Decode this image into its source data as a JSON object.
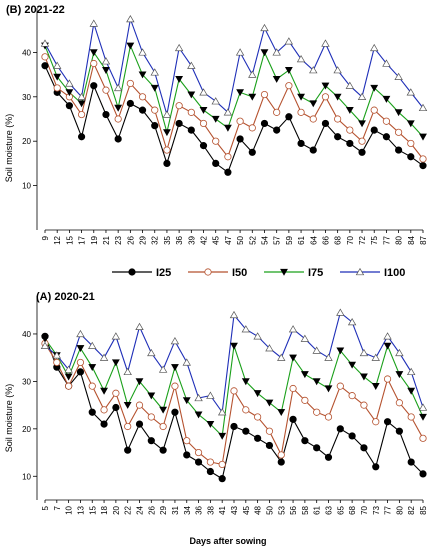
{
  "colors": {
    "I25": "#000000",
    "I50": "#b5522f",
    "I75": "#1aa01a",
    "I100": "#1f2fb8"
  },
  "legend": [
    {
      "name": "I25",
      "marker": "filled-circle"
    },
    {
      "name": "I50",
      "marker": "open-circle"
    },
    {
      "name": "I75",
      "marker": "filled-triangle-down"
    },
    {
      "name": "I100",
      "marker": "open-triangle-up"
    }
  ],
  "chart_data": [
    {
      "type": "line",
      "title": "(B) 2021-22",
      "ylabel": "Soil moisture (%)",
      "xlabel": "",
      "ylim": [
        0,
        50
      ],
      "yticks": [
        10,
        20,
        30,
        40
      ],
      "x": [
        9,
        12,
        15,
        17,
        19,
        21,
        23,
        26,
        29,
        32,
        35,
        36,
        39,
        42,
        45,
        47,
        50,
        52,
        54,
        57,
        59,
        61,
        64,
        66,
        68,
        70,
        72,
        75,
        77,
        80,
        84,
        87
      ],
      "series": [
        {
          "name": "I25",
          "values": [
            37,
            31,
            28,
            21,
            32.5,
            26,
            20.5,
            28.5,
            27,
            23.5,
            15,
            24,
            22.5,
            19,
            15,
            13,
            20.5,
            17.5,
            24,
            22.5,
            25.5,
            19.5,
            18,
            24,
            21,
            19.5,
            17.5,
            22.5,
            21,
            18,
            16.5,
            14.5
          ]
        },
        {
          "name": "I50",
          "values": [
            39,
            32,
            30,
            26,
            37.5,
            31.5,
            25,
            33,
            30,
            27,
            18,
            28,
            26.5,
            24,
            20,
            16.5,
            24.5,
            23,
            30.5,
            26.5,
            32.5,
            26.5,
            25,
            30,
            25,
            22.5,
            20,
            27,
            24.5,
            22,
            19.5,
            16
          ]
        },
        {
          "name": "I75",
          "values": [
            41.5,
            34.5,
            31,
            28.5,
            40,
            36,
            27.5,
            41.5,
            35,
            32,
            22,
            34,
            30.5,
            27,
            25,
            23,
            31,
            30,
            40,
            34,
            36,
            30,
            28.5,
            32.5,
            30,
            27,
            24,
            32,
            29.5,
            26.5,
            24,
            21
          ]
        },
        {
          "name": "I100",
          "values": [
            42,
            37,
            33,
            30,
            46.5,
            38,
            32,
            47.5,
            40,
            35.5,
            26,
            41,
            37,
            31,
            29,
            26.5,
            40,
            35,
            45.5,
            40,
            42.5,
            38.5,
            36,
            42,
            36,
            32.5,
            30,
            41,
            37.5,
            34.5,
            31,
            27.5
          ]
        }
      ]
    },
    {
      "type": "line",
      "title": "(A) 2020-21",
      "ylabel": "Soil moisture (%)",
      "xlabel": "Days after sowing",
      "ylim": [
        5,
        48
      ],
      "yticks": [
        10,
        20,
        30,
        40
      ],
      "x": [
        5,
        7,
        10,
        13,
        15,
        18,
        20,
        22,
        24,
        26,
        29,
        31,
        34,
        36,
        38,
        41,
        43,
        45,
        48,
        50,
        53,
        56,
        58,
        61,
        63,
        65,
        68,
        70,
        73,
        77,
        80,
        82,
        85
      ],
      "series": [
        {
          "name": "I25",
          "values": [
            39.5,
            33,
            29,
            32,
            23.5,
            21,
            24.5,
            15.5,
            21,
            17.5,
            15.5,
            23.5,
            14.5,
            13,
            11,
            9.5,
            20.5,
            19.5,
            18,
            16.5,
            13,
            22,
            17.5,
            16,
            14,
            20,
            18.5,
            16,
            12,
            21.5,
            19.5,
            13,
            10.5
          ]
        },
        {
          "name": "I50",
          "values": [
            38,
            34,
            29,
            34,
            29,
            24,
            27.5,
            20.5,
            25,
            22.5,
            20.5,
            29,
            17.5,
            15,
            13,
            12.5,
            28,
            24,
            22.5,
            19.5,
            14.5,
            28.5,
            26,
            23.5,
            22.5,
            29,
            27,
            25,
            21.5,
            30.5,
            25.5,
            22.5,
            18
          ]
        },
        {
          "name": "I75",
          "values": [
            39,
            35.5,
            31,
            37,
            33,
            28,
            34,
            25,
            30,
            27,
            24,
            33,
            26,
            23,
            21,
            18.5,
            37.5,
            30,
            27.5,
            25.5,
            23.5,
            35,
            31.5,
            30,
            28.5,
            36.5,
            33.5,
            31,
            29,
            37.5,
            31.5,
            28,
            22.5
          ]
        },
        {
          "name": "I100",
          "values": [
            37.5,
            35.5,
            32.5,
            40,
            37.5,
            35,
            39.5,
            32,
            41.5,
            36,
            32.5,
            38.5,
            34,
            26.5,
            27,
            23.5,
            44,
            41,
            39.5,
            37,
            35,
            41,
            39,
            36.5,
            35,
            44.5,
            42.5,
            36,
            35,
            39.5,
            36,
            32,
            24.5
          ]
        }
      ]
    }
  ]
}
